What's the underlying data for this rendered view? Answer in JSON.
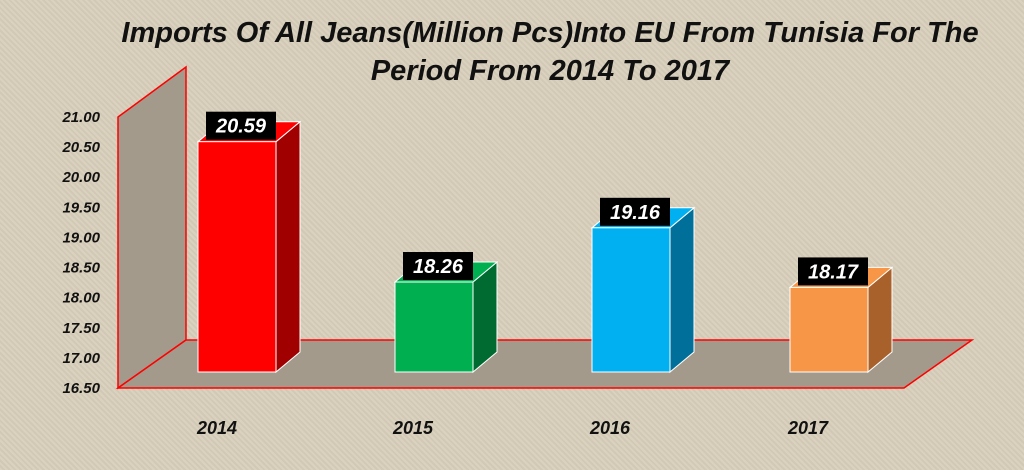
{
  "chart_data": {
    "type": "bar",
    "title_line1": "Imports Of All Jeans(Million Pcs)Into EU From Tunisia For The",
    "title_line2": "Period From 2014 To 2017",
    "categories": [
      "2014",
      "2015",
      "2016",
      "2017"
    ],
    "values": [
      20.59,
      18.26,
      19.16,
      18.17
    ],
    "value_labels": [
      "20.59",
      "18.26",
      "19.16",
      "18.17"
    ],
    "yticks": [
      "16.50",
      "17.00",
      "17.50",
      "18.00",
      "18.50",
      "19.00",
      "19.50",
      "20.00",
      "20.50",
      "21.00"
    ],
    "ylim": [
      16.5,
      21.0
    ],
    "colors": [
      {
        "front": "#ff0000",
        "side": "#a00000",
        "top": "#ff0000"
      },
      {
        "front": "#00b050",
        "side": "#006b30",
        "top": "#00b050"
      },
      {
        "front": "#00b0f0",
        "side": "#006f9a",
        "top": "#00b0f0"
      },
      {
        "front": "#f79646",
        "side": "#a8612a",
        "top": "#f79646"
      }
    ],
    "wall_color": "#a39a8c",
    "edge_color": "#ff0000",
    "grid": false,
    "legend": "none"
  }
}
